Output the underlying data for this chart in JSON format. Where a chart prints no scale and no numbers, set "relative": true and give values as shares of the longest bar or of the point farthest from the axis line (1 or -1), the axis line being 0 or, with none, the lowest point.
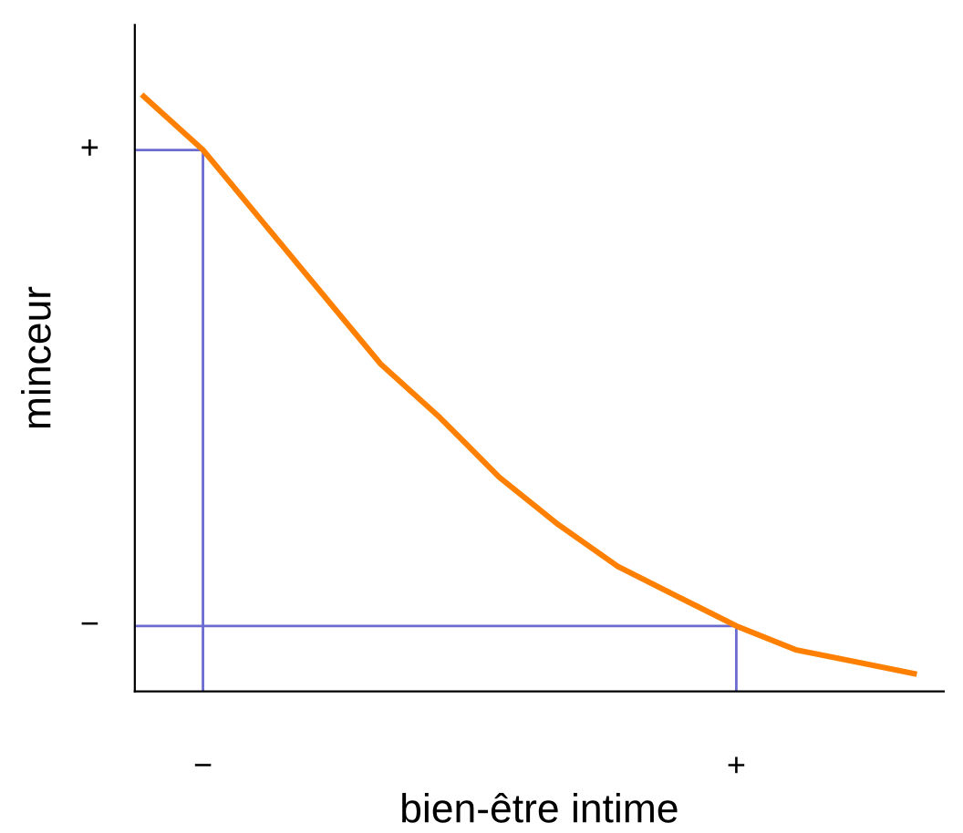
{
  "chart_data": {
    "type": "line",
    "xlabel": "bien-être intime",
    "ylabel": "minceur",
    "relative": true,
    "categories": [
      null,
      "−",
      null,
      null,
      null,
      null,
      null,
      null,
      null,
      null,
      "+",
      null,
      null,
      null
    ],
    "values": [
      1,
      0.91,
      0.79,
      0.67,
      0.55,
      0.46,
      0.36,
      0.28,
      0.21,
      0.16,
      0.11,
      0.07,
      0.05,
      0.03
    ],
    "color": "#ff8000",
    "ref_lines": [
      {
        "axis": "x",
        "value": "−",
        "color": "#6b6bd0"
      },
      {
        "axis": "y",
        "value": 0.91,
        "label": "+",
        "color": "#6b6bd0"
      },
      {
        "axis": "x",
        "value": "+",
        "color": "#6b6bd0"
      },
      {
        "axis": "y",
        "value": 0.11,
        "label": "−",
        "color": "#6b6bd0"
      }
    ]
  }
}
